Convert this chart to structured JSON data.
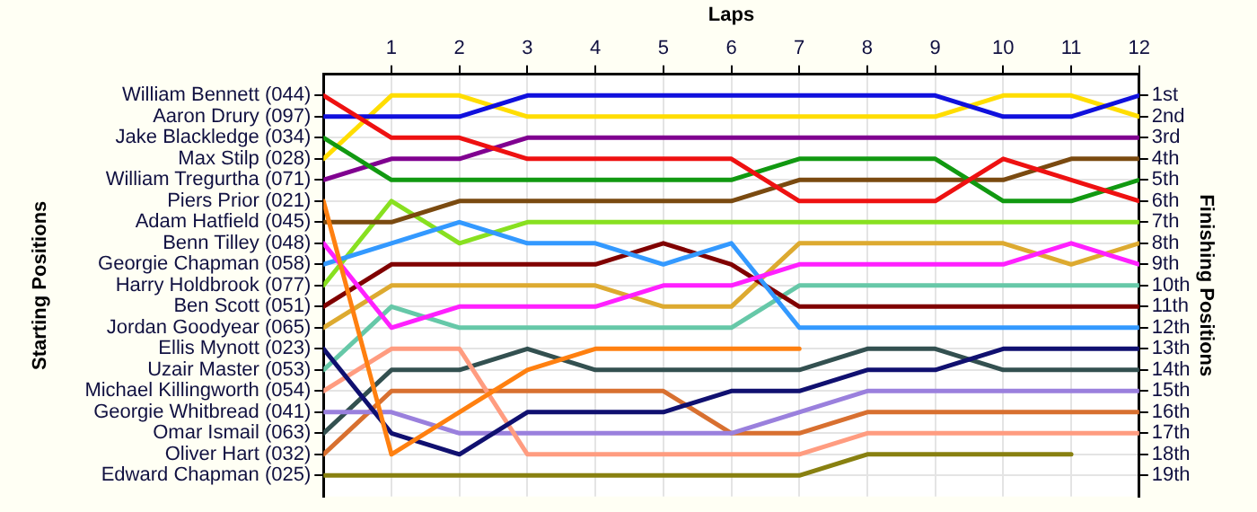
{
  "chart_data": {
    "type": "line",
    "xlabel": "Laps",
    "ylabel": "Finishing Positions",
    "x": [
      0,
      1,
      2,
      3,
      4,
      5,
      6,
      7,
      8,
      9,
      10,
      11,
      12
    ],
    "xlim": [
      0,
      12
    ],
    "xticks": [
      1,
      2,
      3,
      4,
      5,
      6,
      7,
      8,
      9,
      10,
      11,
      12
    ],
    "annotations": [
      "Starting Positions",
      "William Bennett (044)",
      "Aaron Drury (097)",
      "Jake Blackledge (034)",
      "Max Stilp (028)",
      "William Tregurtha (071)",
      "Piers Prior (021)",
      "Adam Hatfield (045)",
      "Benn Tilley (048)",
      "Georgie Chapman (058)",
      "Harry Holdbrook (077)",
      "Ben Scott (051)",
      "Jordan Goodyear (065)",
      "Ellis Mynott (023)",
      "Uzair Master (053)",
      "Michael Killingworth (054)",
      "Georgie Whitbread (041)",
      "Omar Ismail (063)",
      "Oliver Hart (032)",
      "Edward Chapman (025)"
    ],
    "ylim": [
      20,
      0
    ],
    "yticks": [
      {
        "value": 1,
        "label": "1st"
      },
      {
        "value": 2,
        "label": "2nd"
      },
      {
        "value": 3,
        "label": "3rd"
      },
      {
        "value": 4,
        "label": "4th"
      },
      {
        "value": 5,
        "label": "5th"
      },
      {
        "value": 6,
        "label": "6th"
      },
      {
        "value": 7,
        "label": "7th"
      },
      {
        "value": 8,
        "label": "8th"
      },
      {
        "value": 9,
        "label": "9th"
      },
      {
        "value": 10,
        "label": "10th"
      },
      {
        "value": 11,
        "label": "11th"
      },
      {
        "value": 12,
        "label": "12th"
      },
      {
        "value": 13,
        "label": "13th"
      },
      {
        "value": 14,
        "label": "14th"
      },
      {
        "value": 15,
        "label": "15th"
      },
      {
        "value": 16,
        "label": "16th"
      },
      {
        "value": 17,
        "label": "17th"
      },
      {
        "value": 18,
        "label": "18th"
      },
      {
        "value": 19,
        "label": "19th"
      }
    ],
    "grid": true,
    "legend": false,
    "marker": "none",
    "line_style": "solid",
    "series": [
      {
        "color": "#ee1111",
        "values": [
          1,
          3,
          3,
          4,
          4,
          4,
          4,
          6,
          6,
          6,
          4,
          5,
          6
        ]
      },
      {
        "color": "#1010dd",
        "values": [
          2,
          2,
          2,
          1,
          1,
          1,
          1,
          1,
          1,
          1,
          2,
          2,
          1
        ]
      },
      {
        "color": "#119911",
        "values": [
          3,
          5,
          5,
          5,
          5,
          5,
          5,
          4,
          4,
          4,
          6,
          6,
          5
        ]
      },
      {
        "color": "#ffdd00",
        "values": [
          4,
          1,
          1,
          2,
          2,
          2,
          2,
          2,
          2,
          2,
          1,
          1,
          2
        ]
      },
      {
        "color": "#800090",
        "values": [
          5,
          4,
          4,
          3,
          3,
          3,
          3,
          3,
          3,
          3,
          3,
          3,
          3
        ]
      },
      {
        "color": "#ff8010",
        "values": [
          6,
          18,
          16,
          14,
          13,
          13,
          13,
          13,
          null,
          null,
          null,
          null,
          null
        ]
      },
      {
        "color": "#7a4a10",
        "values": [
          7,
          7,
          6,
          6,
          6,
          6,
          6,
          5,
          5,
          5,
          5,
          4,
          4
        ]
      },
      {
        "color": "#ff20ff",
        "values": [
          8,
          12,
          11,
          11,
          11,
          10,
          10,
          9,
          9,
          9,
          9,
          8,
          9
        ]
      },
      {
        "color": "#3399ff",
        "values": [
          9,
          8,
          7,
          8,
          8,
          9,
          8,
          12,
          12,
          12,
          12,
          12,
          12
        ]
      },
      {
        "color": "#88e020",
        "values": [
          10,
          6,
          8,
          7,
          7,
          7,
          7,
          7,
          7,
          7,
          7,
          7,
          7
        ]
      },
      {
        "color": "#800000",
        "values": [
          11,
          9,
          9,
          9,
          9,
          8,
          9,
          11,
          11,
          11,
          11,
          11,
          11
        ]
      },
      {
        "color": "#ddaa30",
        "values": [
          12,
          10,
          10,
          10,
          10,
          11,
          11,
          8,
          8,
          8,
          8,
          9,
          8
        ]
      },
      {
        "color": "#101070",
        "values": [
          13,
          17,
          18,
          16,
          16,
          16,
          15,
          15,
          14,
          14,
          13,
          13,
          13
        ]
      },
      {
        "color": "#66c8a8",
        "values": [
          14,
          11,
          12,
          12,
          12,
          12,
          12,
          10,
          10,
          10,
          10,
          10,
          10
        ]
      },
      {
        "color": "#ff9c80",
        "values": [
          15,
          13,
          13,
          18,
          18,
          18,
          18,
          18,
          17,
          17,
          17,
          17,
          17
        ]
      },
      {
        "color": "#9a80dd",
        "values": [
          16,
          16,
          17,
          17,
          17,
          17,
          17,
          16,
          15,
          15,
          15,
          15,
          15
        ]
      },
      {
        "color": "#335050",
        "values": [
          17,
          14,
          14,
          13,
          14,
          14,
          14,
          14,
          13,
          13,
          14,
          14,
          14
        ]
      },
      {
        "color": "#d87030",
        "values": [
          18,
          15,
          15,
          15,
          15,
          15,
          17,
          17,
          16,
          16,
          16,
          16,
          16
        ]
      },
      {
        "color": "#888010",
        "values": [
          19,
          19,
          19,
          19,
          19,
          19,
          19,
          19,
          18,
          18,
          18,
          18,
          null
        ]
      }
    ]
  }
}
